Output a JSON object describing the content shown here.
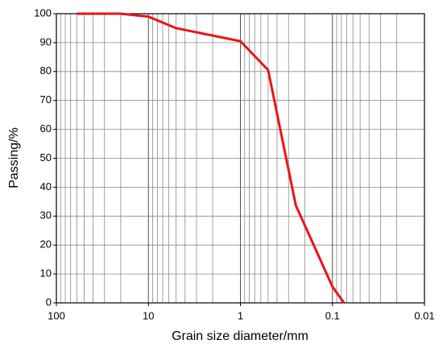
{
  "chart_data": {
    "type": "line",
    "xlabel": "Grain size diameter/mm",
    "ylabel": "Passing/%",
    "x": [
      60,
      20,
      10,
      5,
      1,
      0.5,
      0.25,
      0.1,
      0.075
    ],
    "series": [
      {
        "name": "Passing",
        "color": "#e8141a",
        "values": [
          100,
          100,
          99,
          95,
          90.5,
          80.5,
          33.7,
          5.6,
          0
        ]
      }
    ],
    "xscale": "log",
    "xlim": [
      100,
      0.01
    ],
    "xticks": [
      100,
      10,
      1,
      0.1,
      0.01
    ],
    "xminor_ticks": [
      90,
      80,
      70,
      60,
      50,
      40,
      30,
      20,
      9,
      8,
      7,
      6,
      5,
      4,
      3,
      2,
      0.9,
      0.8,
      0.7,
      0.6,
      0.5,
      0.4,
      0.3,
      0.2,
      0.09,
      0.08,
      0.07,
      0.06,
      0.05,
      0.04,
      0.03,
      0.02
    ],
    "ylim": [
      0,
      100
    ],
    "yticks": [
      0,
      10,
      20,
      30,
      40,
      50,
      60,
      70,
      80,
      90,
      100
    ],
    "grid": true
  }
}
